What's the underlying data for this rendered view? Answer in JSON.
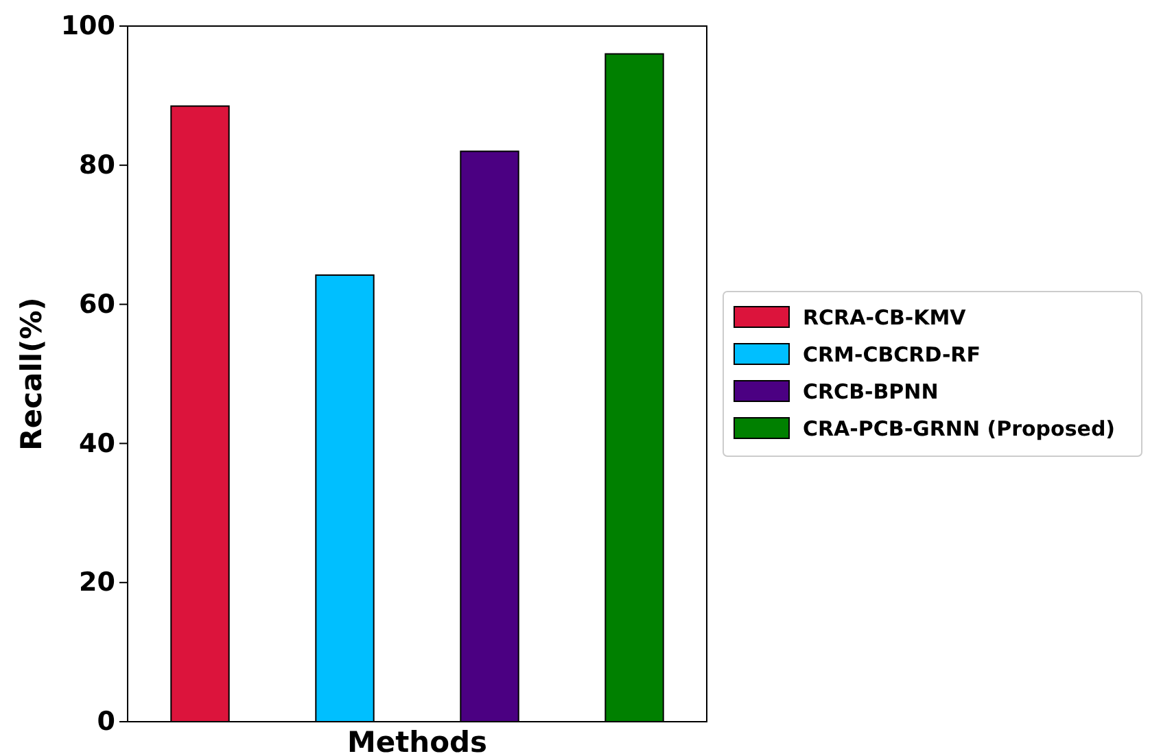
{
  "chart_data": {
    "type": "bar",
    "xlabel": "Methods",
    "ylabel": "Recall(%)",
    "categories": [
      null,
      null,
      null,
      null
    ],
    "series": [
      {
        "name": "RCRA-CB-KMV",
        "color": "#dc143c",
        "values": [
          88.5,
          null,
          null,
          null
        ]
      },
      {
        "name": "CRM-CBCRD-RF",
        "color": "#00bfff",
        "values": [
          null,
          64.2,
          null,
          null
        ]
      },
      {
        "name": "CRCB-BPNN",
        "color": "#4b0082",
        "values": [
          null,
          null,
          82,
          null
        ]
      },
      {
        "name": "CRA-PCB-GRNN (Proposed)",
        "color": "#008000",
        "values": [
          null,
          null,
          null,
          96
        ]
      }
    ],
    "ylim": [
      0,
      100
    ],
    "yticks": [
      0,
      20,
      40,
      60,
      80,
      100
    ],
    "legend": "right",
    "stacked": true
  }
}
